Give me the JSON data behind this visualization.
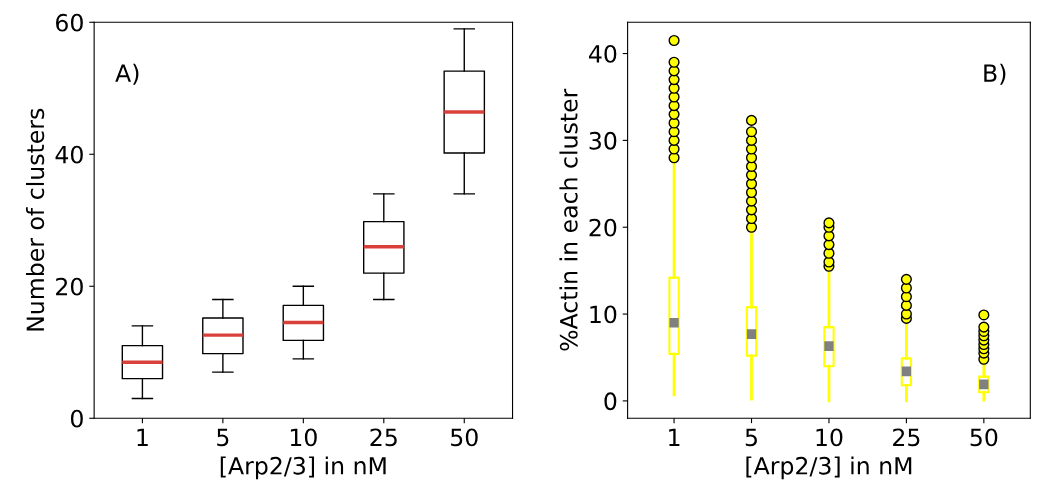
{
  "chart_data": [
    {
      "type": "box",
      "xlabel": "[Arp2/3] in nM",
      "ylabel": "Number of clusters",
      "annotations": [
        "A)"
      ],
      "categories": [
        "1",
        "5",
        "10",
        "25",
        "50"
      ],
      "ylim": [
        0,
        60
      ],
      "yticks": [
        0,
        20,
        40,
        60
      ],
      "grid": false,
      "series": [
        {
          "color": "#000000",
          "boxes": [
            {
              "low": 3,
              "q1": 6,
              "median": 8.5,
              "q3": 11,
              "high": 14
            },
            {
              "low": 7,
              "q1": 9.8,
              "median": 12.6,
              "q3": 15.2,
              "high": 18
            },
            {
              "low": 9,
              "q1": 11.8,
              "median": 14.5,
              "q3": 17.1,
              "high": 20
            },
            {
              "low": 18,
              "q1": 22,
              "median": 26,
              "q3": 29.8,
              "high": 34
            },
            {
              "low": 34,
              "q1": 40.2,
              "median": 46.4,
              "q3": 52.6,
              "high": 59
            }
          ]
        }
      ]
    },
    {
      "type": "box",
      "xlabel": "[Arp2/3] in nM",
      "ylabel": "%Actin in each cluster",
      "annotations": [
        "B)"
      ],
      "categories": [
        "1",
        "5",
        "10",
        "25",
        "50"
      ],
      "ylim": [
        -2,
        43.6
      ],
      "yticks": [
        0,
        10,
        20,
        30,
        40
      ],
      "grid": false,
      "series": [
        {
          "color": "#ffff00",
          "boxes": [
            {
              "low": 0.7,
              "q1": 5.4,
              "median": 9.0,
              "q3": 14.2,
              "high": 27.7,
              "outliers": [
                28,
                29,
                30,
                31,
                32,
                33,
                34,
                35,
                36,
                37,
                38,
                39,
                41.5
              ]
            },
            {
              "low": 0.2,
              "q1": 5.2,
              "median": 7.7,
              "q3": 10.8,
              "high": 19.5,
              "outliers": [
                20,
                21,
                22,
                23,
                24,
                25,
                26,
                27,
                28,
                29,
                30,
                31,
                32.3
              ]
            },
            {
              "low": 0,
              "q1": 4.0,
              "median": 6.3,
              "q3": 8.5,
              "high": 15.2,
              "outliers": [
                15.5,
                16,
                17,
                18,
                19,
                20,
                20.5
              ]
            },
            {
              "low": 0,
              "q1": 1.8,
              "median": 3.4,
              "q3": 4.9,
              "high": 9.2,
              "outliers": [
                9.5,
                10,
                11,
                12,
                13,
                14
              ]
            },
            {
              "low": 0.1,
              "q1": 1.0,
              "median": 1.9,
              "q3": 2.8,
              "high": 4.4,
              "outliers": [
                4.8,
                5.5,
                6,
                6.5,
                7,
                7.5,
                8,
                8.5,
                9.9
              ]
            }
          ]
        }
      ]
    }
  ]
}
